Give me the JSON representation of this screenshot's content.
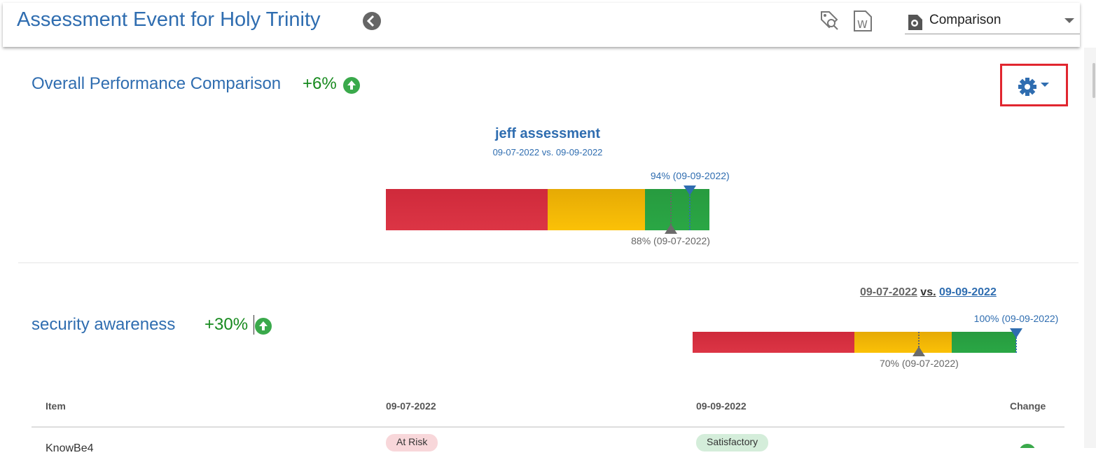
{
  "header": {
    "title": "Assessment Event for Holy Trinity",
    "view": "Comparison"
  },
  "overall": {
    "title": "Overall Performance Comparison",
    "change": "+6%",
    "chart": {
      "title": "jeff assessment",
      "subtitle": "09-07-2022 vs. 09-09-2022",
      "after": {
        "value": 94,
        "label": "94% (09-09-2022)"
      },
      "before": {
        "value": 88,
        "label": "88% (09-07-2022)"
      }
    }
  },
  "security": {
    "title": "security awareness",
    "change": "+30%",
    "dates": [
      "09-07-2022",
      "vs.",
      "09-09-2022"
    ],
    "chart": {
      "after": {
        "value": 100,
        "label": "100% (09-09-2022)"
      },
      "before": {
        "value": 70,
        "label": "70% (09-07-2022)"
      }
    }
  },
  "table": {
    "columns": [
      "Item",
      "09-07-2022",
      "09-09-2022",
      "Change"
    ],
    "rows": [
      [
        "KnowBe4",
        "At Risk",
        "Satisfactory"
      ]
    ]
  }
}
